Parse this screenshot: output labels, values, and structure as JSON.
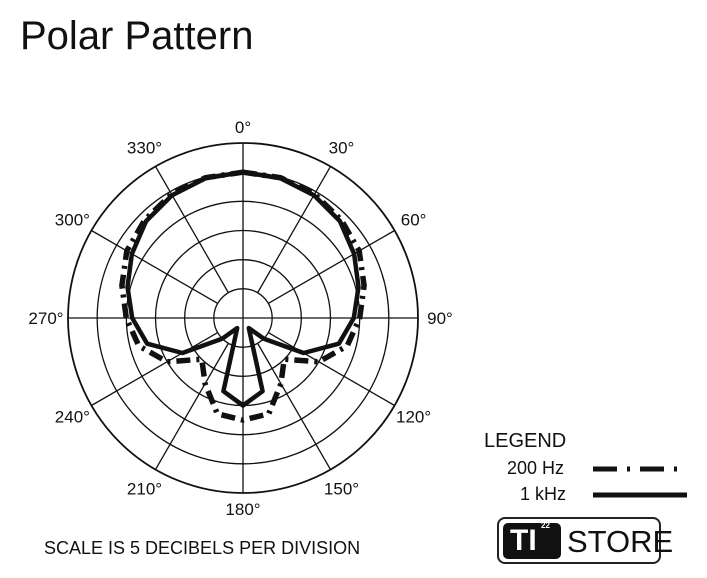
{
  "title": "Polar Pattern",
  "scale_note": "SCALE IS 5 DECIBELS PER DIVISION",
  "legend": {
    "title": "LEGEND",
    "items": [
      "200 Hz",
      "1 kHz"
    ]
  },
  "logo": {
    "text": "TI",
    "sup": "22",
    "store": "STORE"
  },
  "chart_data": {
    "type": "polar-line",
    "angular_ticks": [
      "0°",
      "30°",
      "60°",
      "90°",
      "120°",
      "150°",
      "180°",
      "210°",
      "240°",
      "270°",
      "300°",
      "330°"
    ],
    "radial_unit": "dB",
    "radial_range": [
      -30,
      0
    ],
    "radial_step": 5,
    "grid": true,
    "legend_placement": "bottom-right",
    "angles": [
      0,
      15,
      30,
      45,
      60,
      75,
      90,
      105,
      120,
      135,
      150,
      165,
      180,
      195,
      210,
      225,
      240,
      255,
      270,
      285,
      300,
      315,
      330,
      345
    ],
    "series": [
      {
        "name": "200 Hz",
        "style": "dash-dot",
        "values": [
          -5,
          -5.1,
          -5.5,
          -6.2,
          -7,
          -8.5,
          -10,
          -11.5,
          -15,
          -20,
          -17,
          -13,
          -12.5,
          -13,
          -17,
          -20,
          -15,
          -11.5,
          -10,
          -8.5,
          -7,
          -6.2,
          -5.5,
          -5.1
        ]
      },
      {
        "name": "1 kHz",
        "style": "solid",
        "values": [
          -5,
          -5.2,
          -5.7,
          -6.5,
          -8,
          -9.5,
          -11,
          -13,
          -18,
          -25,
          -28,
          -17,
          -15,
          -17,
          -28,
          -25,
          -18,
          -13,
          -11,
          -9.5,
          -8,
          -6.5,
          -5.7,
          -5.2
        ]
      }
    ]
  }
}
